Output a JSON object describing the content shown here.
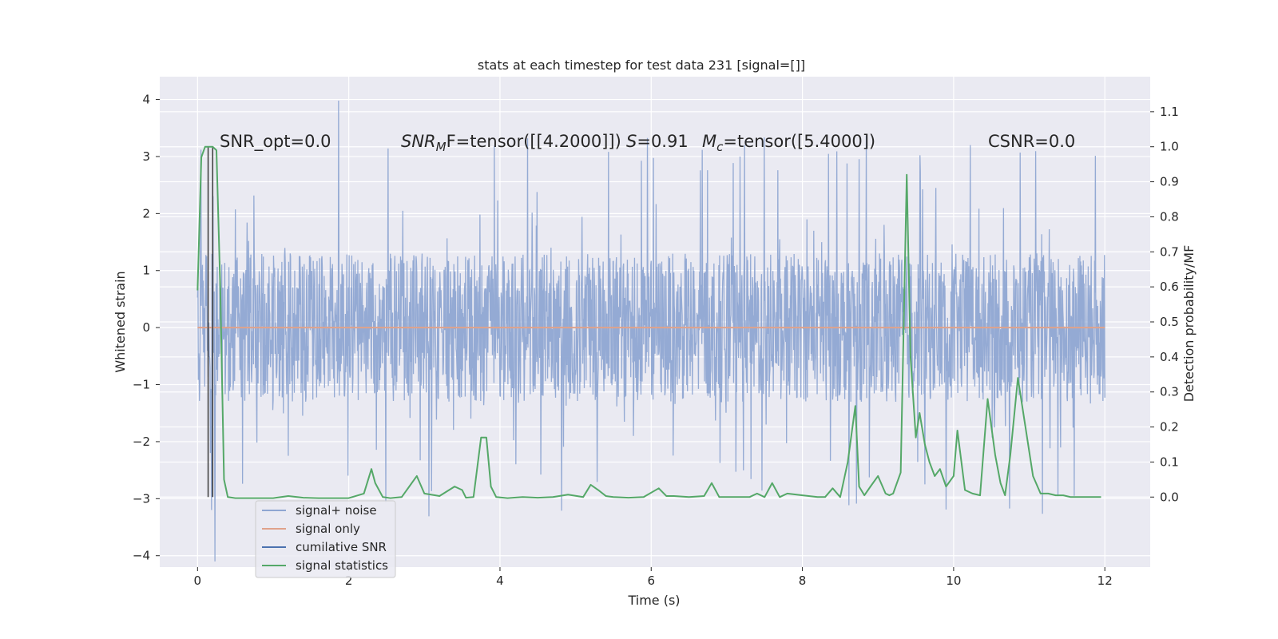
{
  "chart_data": {
    "type": "line",
    "title": "stats at each timestep for test data 231 [signal=[]]",
    "xlabel": "Time (s)",
    "ylabel_left": "Whitened strain",
    "ylabel_right": "Detection probability/MF",
    "xlim": [
      -0.5,
      12.6
    ],
    "ylim_left": [
      -4.2,
      4.4
    ],
    "ylim_right": [
      -0.2,
      1.2
    ],
    "xticks": [
      "0",
      "2",
      "4",
      "6",
      "8",
      "10",
      "12"
    ],
    "yticks_left": [
      "−4",
      "−3",
      "−2",
      "−1",
      "0",
      "1",
      "2",
      "3",
      "4"
    ],
    "yticks_right": [
      "0.0",
      "0.1",
      "0.2",
      "0.3",
      "0.4",
      "0.5",
      "0.6",
      "0.7",
      "0.8",
      "0.9",
      "1.0",
      "1.1"
    ],
    "grid": true,
    "legend_position": "lower-left",
    "background": "#eaeaf2",
    "annotations": {
      "snr_opt": "SNR_opt=0.0",
      "snr_mf_prefix": "SNR",
      "snr_mf_sub": "M",
      "snr_mf_suffix": "F=tensor([[4.2000]])",
      "s_prefix": "S",
      "s_suffix": "=0.91",
      "mc_prefix": "M",
      "mc_sub": "c",
      "mc_suffix": "=tensor([5.4000])",
      "csnr": "CSNR=0.0"
    },
    "series": [
      {
        "name": "signal+ noise",
        "color": "#8fa6d2",
        "axis": "left",
        "description_only": false,
        "x_range": [
          0,
          12
        ],
        "typical_range": [
          -1.3,
          1.3
        ],
        "max": 3.98,
        "min": -4.1
      },
      {
        "name": "signal only",
        "color": "#e0a28b",
        "axis": "left",
        "x": [
          0,
          12
        ],
        "values": [
          0,
          0
        ]
      },
      {
        "name": "cumilative SNR",
        "color": "#4c72b0",
        "axis": "right"
      },
      {
        "name": "signal statistics",
        "color": "#55a868",
        "axis": "right",
        "x": [
          0.0,
          0.05,
          0.1,
          0.15,
          0.2,
          0.25,
          0.3,
          0.35,
          0.4,
          0.5,
          0.6,
          0.8,
          1.0,
          1.2,
          1.4,
          1.6,
          1.8,
          2.0,
          2.2,
          2.3,
          2.35,
          2.45,
          2.55,
          2.7,
          2.8,
          2.9,
          3.0,
          3.2,
          3.4,
          3.5,
          3.55,
          3.65,
          3.75,
          3.82,
          3.88,
          3.95,
          4.1,
          4.3,
          4.5,
          4.7,
          4.9,
          5.1,
          5.2,
          5.3,
          5.4,
          5.5,
          5.7,
          5.9,
          6.1,
          6.2,
          6.3,
          6.5,
          6.7,
          6.8,
          6.9,
          7.1,
          7.3,
          7.4,
          7.5,
          7.6,
          7.7,
          7.8,
          8.0,
          8.2,
          8.3,
          8.4,
          8.5,
          8.6,
          8.7,
          8.75,
          8.82,
          8.9,
          9.0,
          9.1,
          9.15,
          9.2,
          9.3,
          9.38,
          9.43,
          9.5,
          9.55,
          9.62,
          9.68,
          9.75,
          9.82,
          9.9,
          10.0,
          10.05,
          10.15,
          10.25,
          10.35,
          10.45,
          10.55,
          10.62,
          10.68,
          10.75,
          10.85,
          10.95,
          11.05,
          11.15,
          11.25,
          11.35,
          11.45,
          11.55,
          11.65,
          11.75,
          11.85,
          11.95
        ],
        "values": [
          0.59,
          0.97,
          1.0,
          1.0,
          1.0,
          0.99,
          0.6,
          0.05,
          0.0,
          -0.003,
          -0.003,
          -0.003,
          -0.003,
          0.003,
          -0.002,
          -0.003,
          -0.003,
          -0.003,
          0.01,
          0.08,
          0.04,
          0.0,
          -0.003,
          0.0,
          0.03,
          0.06,
          0.01,
          0.003,
          0.03,
          0.02,
          -0.002,
          0.0,
          0.17,
          0.17,
          0.03,
          0.0,
          -0.003,
          0.0,
          -0.002,
          0.0,
          0.007,
          0.0,
          0.035,
          0.02,
          0.003,
          0.0,
          -0.002,
          0.0,
          0.025,
          0.003,
          0.003,
          0.0,
          0.003,
          0.04,
          0.0,
          0.0,
          0.0,
          0.01,
          0.0,
          0.04,
          0.0,
          0.01,
          0.005,
          0.0,
          0.0,
          0.025,
          0.0,
          0.1,
          0.26,
          0.03,
          0.005,
          0.03,
          0.06,
          0.01,
          0.005,
          0.01,
          0.07,
          0.92,
          0.4,
          0.17,
          0.24,
          0.15,
          0.1,
          0.06,
          0.08,
          0.03,
          0.06,
          0.19,
          0.02,
          0.01,
          0.005,
          0.28,
          0.12,
          0.04,
          0.005,
          0.12,
          0.34,
          0.2,
          0.06,
          0.01,
          0.01,
          0.005,
          0.005,
          0.0,
          0.0,
          0.0,
          0.0,
          0.0
        ]
      }
    ],
    "vertical_lines": [
      {
        "x": 0.14,
        "y_top": 1.0,
        "y_bottom": 0.0,
        "color": "#444444"
      },
      {
        "x": 0.2,
        "y_top": 1.0,
        "y_bottom": 0.0,
        "color": "#444444"
      }
    ]
  }
}
